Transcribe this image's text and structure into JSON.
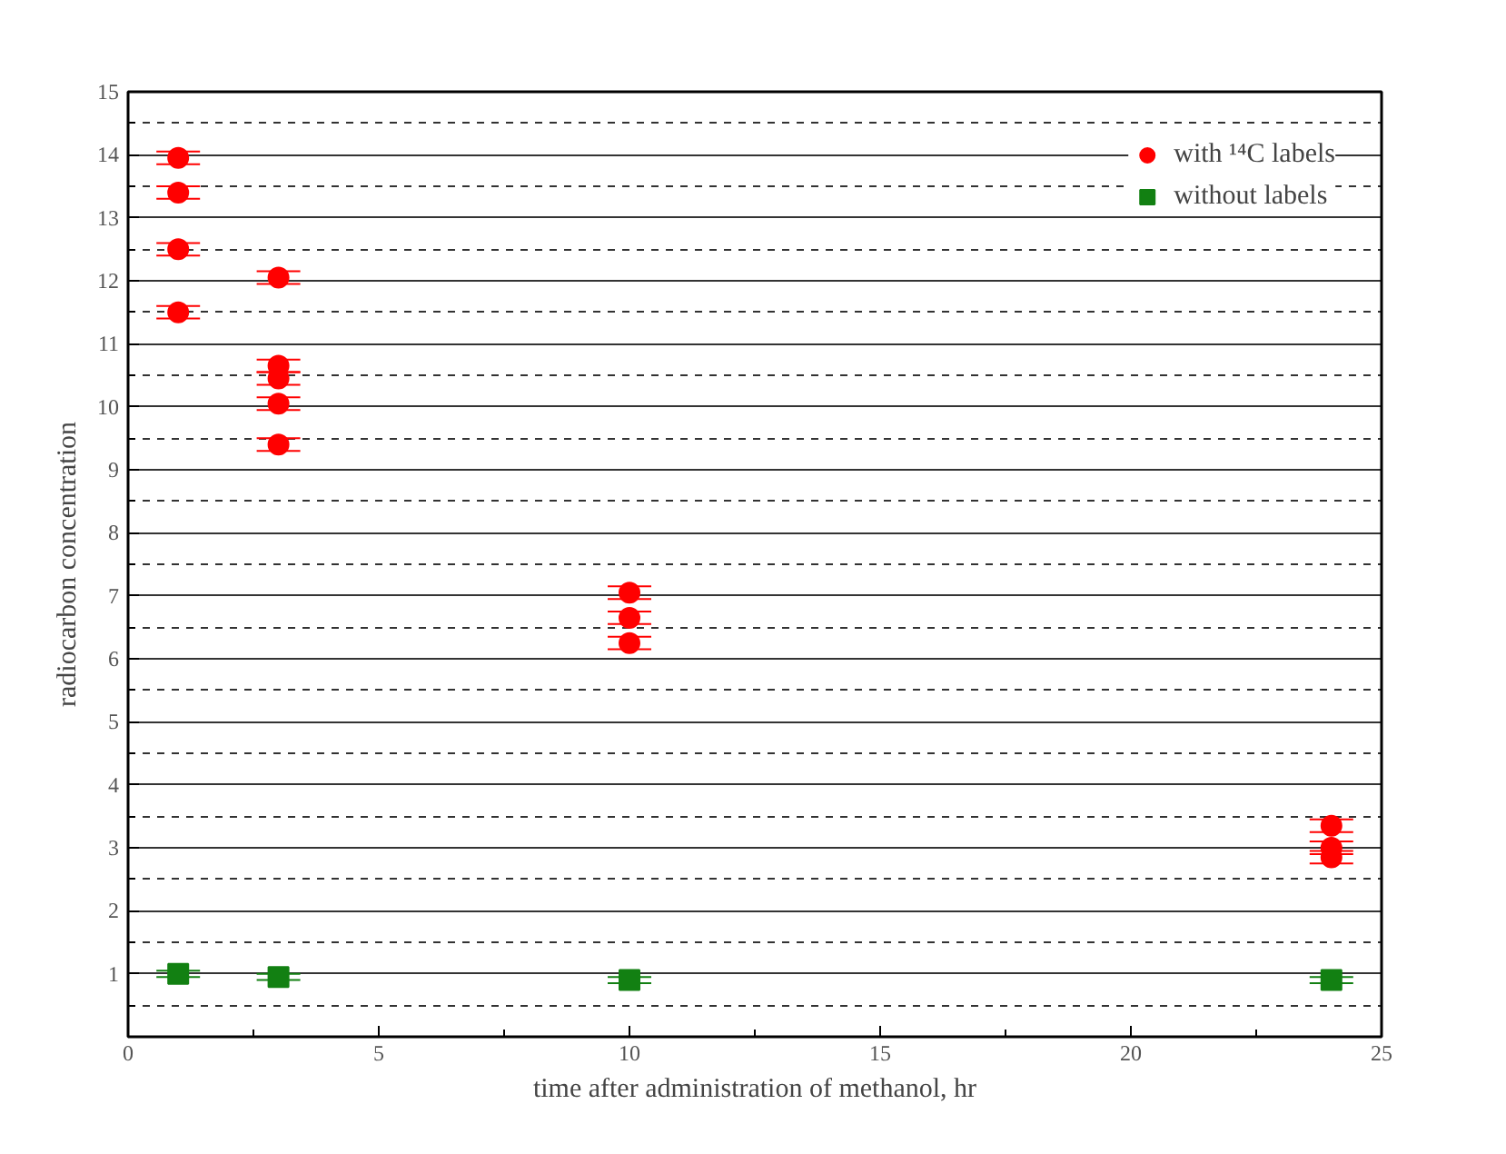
{
  "chart_data": {
    "type": "scatter",
    "xlabel": "time after administration of methanol, hr",
    "ylabel": "radiocarbon concentration",
    "series": [
      {
        "name": "with ¹⁴C labels",
        "color": "#ff0000",
        "marker": "circle",
        "x": [
          1,
          1,
          1,
          1,
          3,
          3,
          3,
          3,
          3,
          10,
          10,
          10,
          24,
          24,
          24
        ],
        "values": [
          13.95,
          13.4,
          12.5,
          11.5,
          12.05,
          10.65,
          10.45,
          10.05,
          9.4,
          7.05,
          6.65,
          6.25,
          3.35,
          3.0,
          2.85
        ],
        "errors": [
          0.1,
          0.1,
          0.1,
          0.1,
          0.1,
          0.1,
          0.1,
          0.1,
          0.1,
          0.1,
          0.1,
          0.1,
          0.1,
          0.1,
          0.1
        ]
      },
      {
        "name": "without labels",
        "color": "#128012",
        "marker": "square",
        "x": [
          1,
          3,
          10,
          24
        ],
        "values": [
          1.0,
          0.95,
          0.9,
          0.9
        ],
        "errors": [
          0.05,
          0.05,
          0.05,
          0.05
        ]
      }
    ],
    "xlim": [
      0,
      25
    ],
    "ylim": [
      0,
      15
    ],
    "xticks": [
      0,
      {
        "value": 2.5,
        "label": null
      },
      5,
      {
        "value": 7.5,
        "label": null
      },
      10,
      {
        "value": 12.5,
        "label": null
      },
      15,
      {
        "value": 17.5,
        "label": null
      },
      20,
      {
        "value": 22.5,
        "label": null
      },
      25
    ],
    "yticks": [
      {
        "value": 0.5,
        "label": null
      },
      1,
      {
        "value": 1.5,
        "label": null
      },
      2,
      {
        "value": 2.5,
        "label": null
      },
      3,
      {
        "value": 3.5,
        "label": null
      },
      4,
      {
        "value": 4.5,
        "label": null
      },
      5,
      {
        "value": 5.5,
        "label": null
      },
      6,
      {
        "value": 6.5,
        "label": null
      },
      7,
      {
        "value": 7.5,
        "label": null
      },
      8,
      {
        "value": 8.5,
        "label": null
      },
      9,
      {
        "value": 9.5,
        "label": null
      },
      10,
      {
        "value": 10.5,
        "label": null
      },
      11,
      {
        "value": 11.5,
        "label": null
      },
      12,
      {
        "value": 12.5,
        "label": null
      },
      13,
      {
        "value": 13.5,
        "label": null
      },
      14,
      {
        "value": 14.5,
        "label": null
      },
      15
    ],
    "grid": "y",
    "legend": "top right"
  }
}
